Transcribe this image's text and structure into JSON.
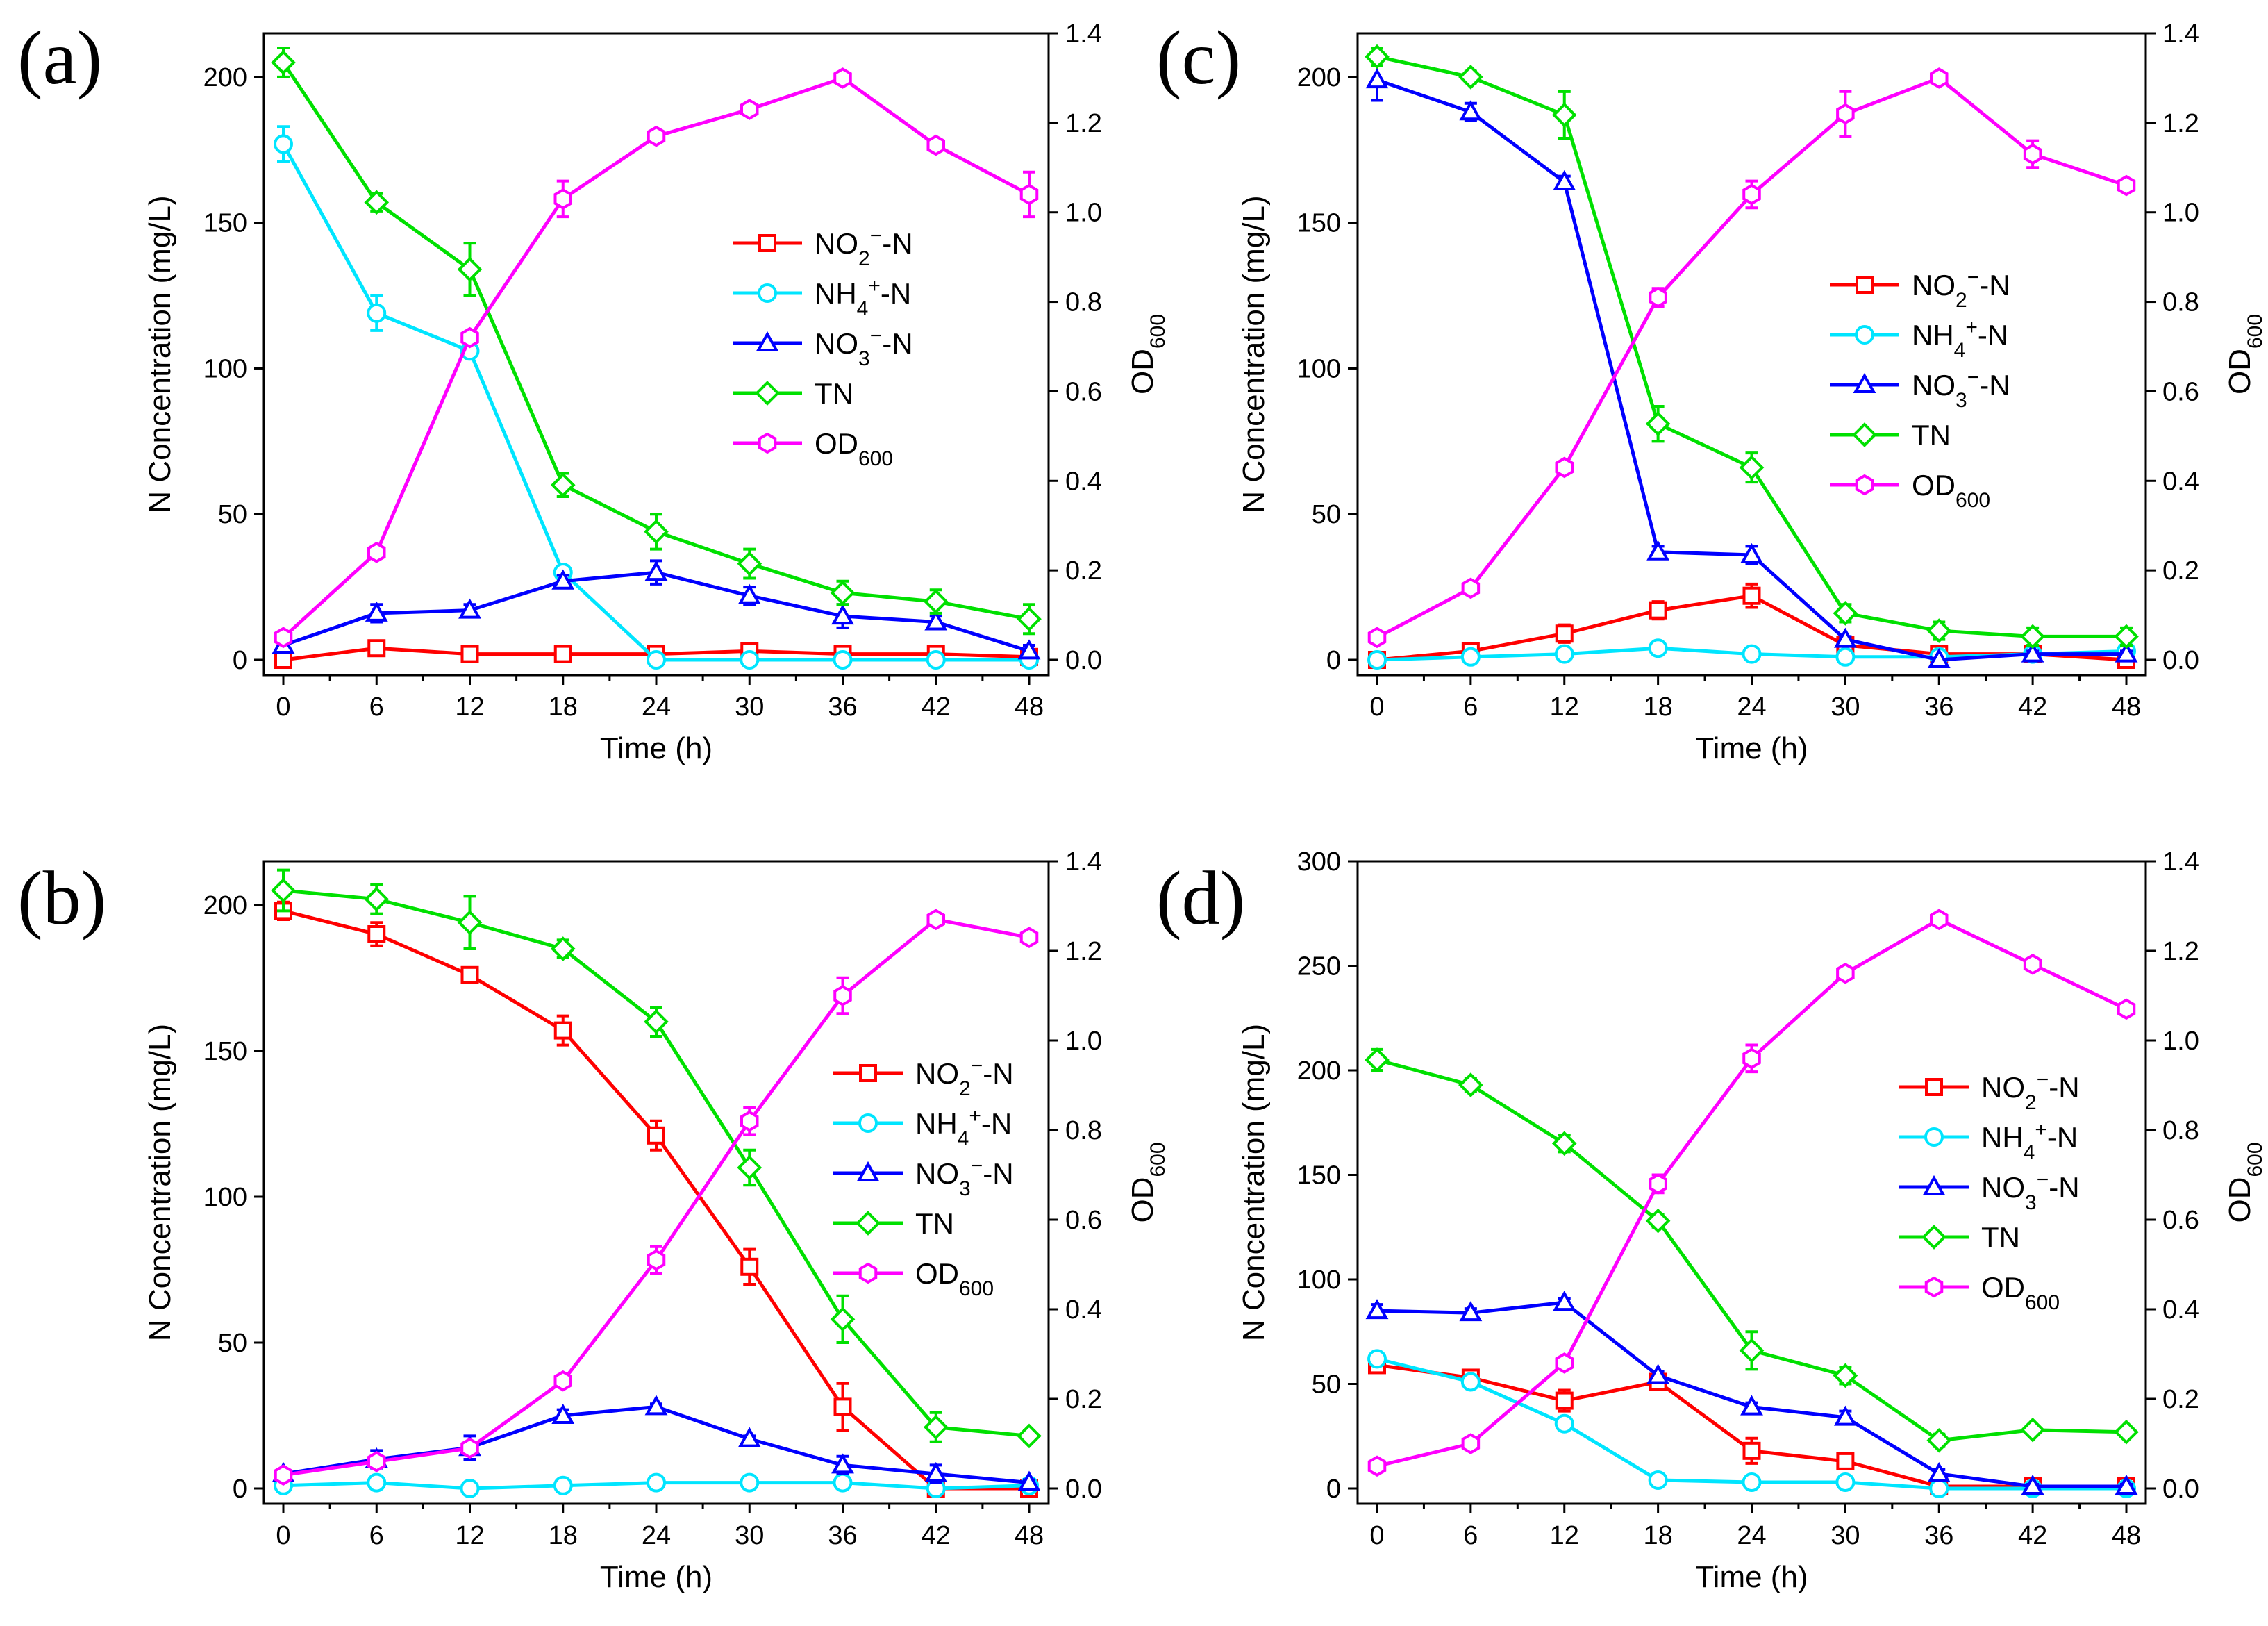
{
  "chart_data": [
    {
      "type": "line",
      "panel": "(a)",
      "x": [
        0,
        6,
        12,
        18,
        24,
        30,
        36,
        42,
        48
      ],
      "xlabel": "Time (h)",
      "ylabel": "N Concentration (mg/L)",
      "y2label": "OD600",
      "ylim": [
        0,
        215
      ],
      "y2lim": [
        0,
        1.4
      ],
      "yticks": [
        0,
        50,
        100,
        150,
        200
      ],
      "y2ticks": [
        0.0,
        0.2,
        0.4,
        0.6,
        0.8,
        1.0,
        1.2,
        1.4
      ],
      "legend_position": "center-right",
      "series": [
        {
          "name": "NO2−-N",
          "axis": "left",
          "color": "#ff0000",
          "marker": "square",
          "values": [
            0,
            4,
            2,
            2,
            2,
            3,
            2,
            2,
            1
          ],
          "err": [
            1,
            2,
            2,
            1,
            1,
            2,
            1,
            1,
            1
          ]
        },
        {
          "name": "NH4+-N",
          "axis": "left",
          "color": "#00e5ff",
          "marker": "circle",
          "values": [
            177,
            119,
            106,
            30,
            0,
            0,
            0,
            0,
            0
          ],
          "err": [
            6,
            6,
            2,
            2,
            0,
            0,
            0,
            0,
            0
          ]
        },
        {
          "name": "NO3−-N",
          "axis": "left",
          "color": "#0000ff",
          "marker": "triangle",
          "values": [
            5,
            16,
            17,
            27,
            30,
            22,
            15,
            13,
            3
          ],
          "err": [
            2,
            3,
            2,
            2,
            4,
            3,
            4,
            2,
            2
          ]
        },
        {
          "name": "TN",
          "axis": "left",
          "color": "#00e000",
          "marker": "diamond",
          "values": [
            205,
            157,
            134,
            60,
            44,
            33,
            23,
            20,
            14
          ],
          "err": [
            5,
            3,
            9,
            4,
            6,
            5,
            4,
            4,
            5
          ]
        },
        {
          "name": "OD600",
          "axis": "right",
          "color": "#ff00ff",
          "marker": "hexagon",
          "values": [
            0.05,
            0.24,
            0.72,
            1.03,
            1.17,
            1.23,
            1.3,
            1.15,
            1.04
          ],
          "err": [
            0.01,
            0.01,
            0.01,
            0.04,
            0.01,
            0.01,
            0.01,
            0.01,
            0.05
          ]
        }
      ]
    },
    {
      "type": "line",
      "panel": "(c)",
      "x": [
        0,
        6,
        12,
        18,
        24,
        30,
        36,
        42,
        48
      ],
      "xlabel": "Time (h)",
      "ylabel": "N Concentration (mg/L)",
      "y2label": "OD600",
      "ylim": [
        0,
        215
      ],
      "y2lim": [
        0,
        1.4
      ],
      "yticks": [
        0,
        50,
        100,
        150,
        200
      ],
      "y2ticks": [
        0.0,
        0.2,
        0.4,
        0.6,
        0.8,
        1.0,
        1.2,
        1.4
      ],
      "legend_position": "center-right",
      "series": [
        {
          "name": "NO2−-N",
          "axis": "left",
          "color": "#ff0000",
          "marker": "square",
          "values": [
            0,
            3,
            9,
            17,
            22,
            5,
            2,
            2,
            0
          ],
          "err": [
            1,
            1,
            3,
            3,
            4,
            1,
            1,
            1,
            1
          ]
        },
        {
          "name": "NH4+-N",
          "axis": "left",
          "color": "#00e5ff",
          "marker": "circle",
          "values": [
            0,
            1,
            2,
            4,
            2,
            1,
            1,
            2,
            3
          ],
          "err": [
            0,
            0,
            1,
            1,
            1,
            0,
            0,
            1,
            1
          ]
        },
        {
          "name": "NO3−-N",
          "axis": "left",
          "color": "#0000ff",
          "marker": "triangle",
          "values": [
            199,
            188,
            164,
            37,
            36,
            7,
            0,
            2,
            2
          ],
          "err": [
            7,
            3,
            2,
            2,
            3,
            1,
            0,
            1,
            1
          ]
        },
        {
          "name": "TN",
          "axis": "left",
          "color": "#00e000",
          "marker": "diamond",
          "values": [
            207,
            200,
            187,
            81,
            66,
            16,
            10,
            8,
            8
          ],
          "err": [
            3,
            2,
            8,
            6,
            5,
            3,
            3,
            3,
            3
          ]
        },
        {
          "name": "OD600",
          "axis": "right",
          "color": "#ff00ff",
          "marker": "hexagon",
          "values": [
            0.05,
            0.16,
            0.43,
            0.81,
            1.04,
            1.22,
            1.3,
            1.13,
            1.06
          ],
          "err": [
            0.01,
            0.01,
            0.01,
            0.02,
            0.03,
            0.05,
            0.01,
            0.03,
            0.01
          ]
        }
      ]
    },
    {
      "type": "line",
      "panel": "(b)",
      "x": [
        0,
        6,
        12,
        18,
        24,
        30,
        36,
        42,
        48
      ],
      "xlabel": "Time (h)",
      "ylabel": "N Concentration (mg/L)",
      "y2label": "OD600",
      "ylim": [
        0,
        215
      ],
      "y2lim": [
        0,
        1.4
      ],
      "yticks": [
        0,
        50,
        100,
        150,
        200
      ],
      "y2ticks": [
        0.0,
        0.2,
        0.4,
        0.6,
        0.8,
        1.0,
        1.2,
        1.4
      ],
      "legend_position": "center-right",
      "series": [
        {
          "name": "NO2−-N",
          "axis": "left",
          "color": "#ff0000",
          "marker": "square",
          "values": [
            198,
            190,
            176,
            157,
            121,
            76,
            28,
            0,
            0
          ],
          "err": [
            3,
            4,
            2,
            5,
            5,
            6,
            8,
            0,
            0
          ]
        },
        {
          "name": "NH4+-N",
          "axis": "left",
          "color": "#00e5ff",
          "marker": "circle",
          "values": [
            1,
            2,
            0,
            1,
            2,
            2,
            2,
            0,
            1
          ],
          "err": [
            1,
            1,
            0,
            1,
            1,
            1,
            1,
            0,
            1
          ]
        },
        {
          "name": "NO3−-N",
          "axis": "left",
          "color": "#0000ff",
          "marker": "triangle",
          "values": [
            5,
            10,
            14,
            25,
            28,
            17,
            8,
            5,
            2
          ],
          "err": [
            1,
            3,
            4,
            2,
            1,
            1,
            3,
            3,
            1
          ]
        },
        {
          "name": "TN",
          "axis": "left",
          "color": "#00e000",
          "marker": "diamond",
          "values": [
            205,
            202,
            194,
            185,
            160,
            110,
            58,
            21,
            18
          ],
          "err": [
            7,
            5,
            9,
            3,
            5,
            6,
            8,
            5,
            2
          ]
        },
        {
          "name": "OD600",
          "axis": "right",
          "color": "#ff00ff",
          "marker": "hexagon",
          "values": [
            0.03,
            0.06,
            0.09,
            0.24,
            0.51,
            0.82,
            1.1,
            1.27,
            1.23
          ],
          "err": [
            0.01,
            0.01,
            0.01,
            0.01,
            0.03,
            0.03,
            0.04,
            0.01,
            0.01
          ]
        }
      ]
    },
    {
      "type": "line",
      "panel": "(d)",
      "x": [
        0,
        6,
        12,
        18,
        24,
        30,
        36,
        42,
        48
      ],
      "xlabel": "Time (h)",
      "ylabel": "N Concentration (mg/L)",
      "y2label": "OD600",
      "ylim": [
        0,
        300
      ],
      "y2lim": [
        0,
        1.4
      ],
      "yticks": [
        0,
        50,
        100,
        150,
        200,
        250,
        300
      ],
      "y2ticks": [
        0.0,
        0.2,
        0.4,
        0.6,
        0.8,
        1.0,
        1.2,
        1.4
      ],
      "legend_position": "center-right",
      "series": [
        {
          "name": "NO2−-N",
          "axis": "left",
          "color": "#ff0000",
          "marker": "square",
          "values": [
            59,
            53,
            42,
            51,
            18,
            13,
            1,
            1,
            1
          ],
          "err": [
            2,
            3,
            5,
            2,
            6,
            2,
            0,
            0,
            0
          ]
        },
        {
          "name": "NH4+-N",
          "axis": "left",
          "color": "#00e5ff",
          "marker": "circle",
          "values": [
            62,
            51,
            31,
            4,
            3,
            3,
            0,
            0,
            0
          ],
          "err": [
            2,
            2,
            2,
            1,
            1,
            1,
            0,
            0,
            0
          ]
        },
        {
          "name": "NO3−-N",
          "axis": "left",
          "color": "#0000ff",
          "marker": "triangle",
          "values": [
            85,
            84,
            89,
            54,
            39,
            34,
            7,
            1,
            1
          ],
          "err": [
            3,
            2,
            2,
            2,
            2,
            3,
            2,
            1,
            1
          ]
        },
        {
          "name": "TN",
          "axis": "left",
          "color": "#00e000",
          "marker": "diamond",
          "values": [
            205,
            193,
            165,
            128,
            66,
            54,
            23,
            28,
            27
          ],
          "err": [
            5,
            3,
            4,
            3,
            9,
            4,
            3,
            2,
            2
          ]
        },
        {
          "name": "OD600",
          "axis": "right",
          "color": "#ff00ff",
          "marker": "hexagon",
          "values": [
            0.05,
            0.1,
            0.28,
            0.68,
            0.96,
            1.15,
            1.27,
            1.17,
            1.07
          ],
          "err": [
            0.01,
            0.01,
            0.01,
            0.02,
            0.03,
            0.01,
            0.01,
            0.01,
            0.01
          ]
        }
      ]
    }
  ]
}
